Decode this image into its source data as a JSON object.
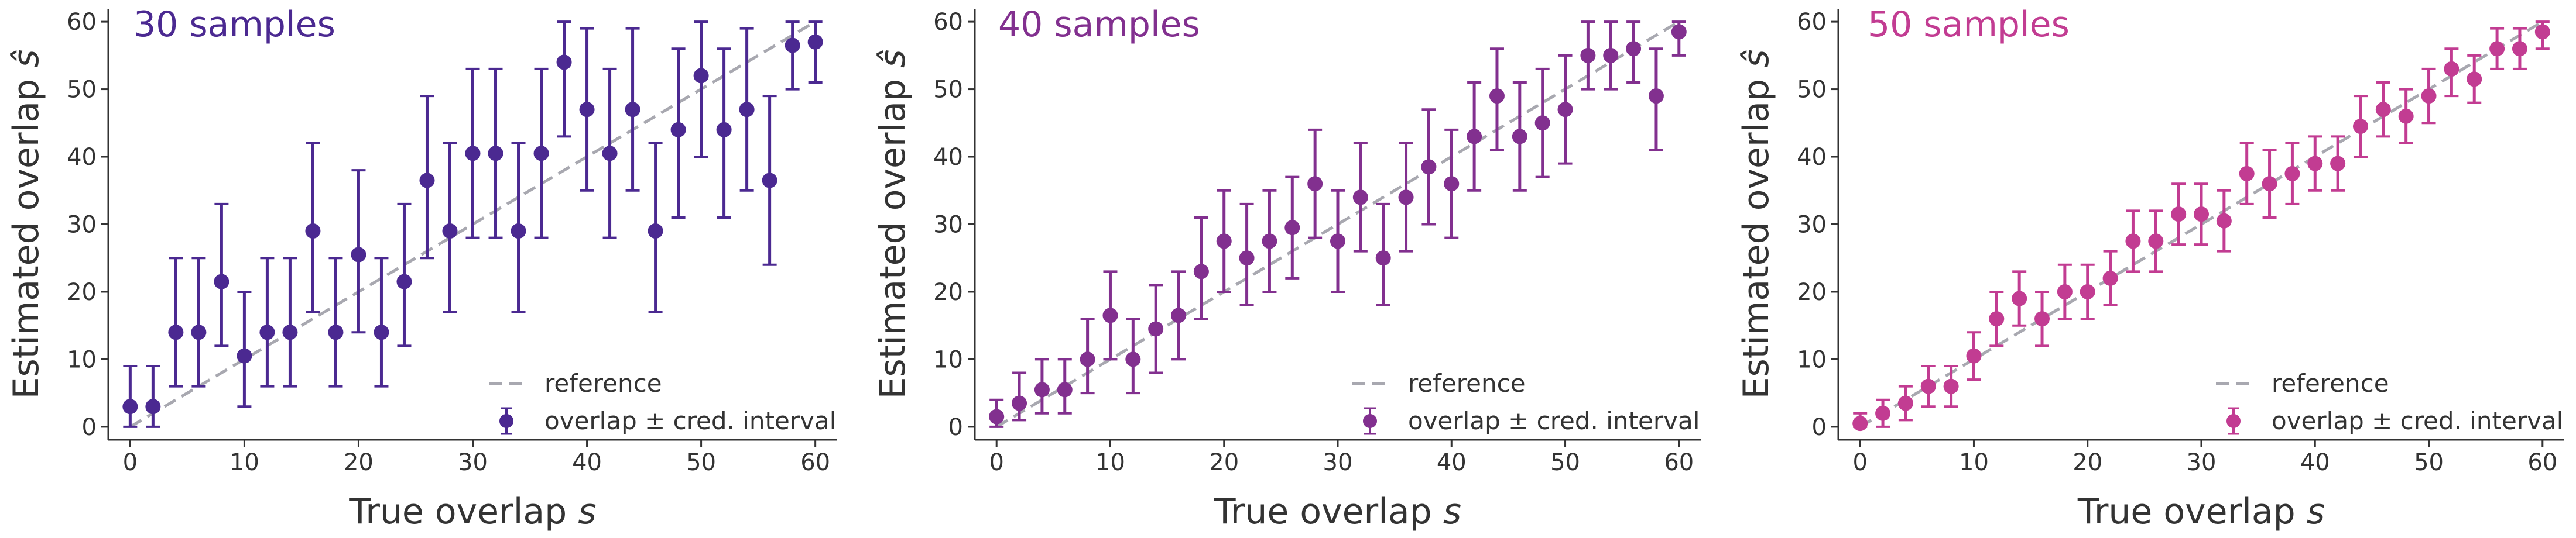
{
  "chart_data": [
    {
      "type": "scatter",
      "title": "30 samples",
      "color": "#4b2991",
      "xlabel": "True overlap",
      "xlabel_var": "s",
      "ylabel": "Estimated overlap",
      "ylabel_var": "ŝ",
      "xlim": [
        0,
        60
      ],
      "ylim": [
        0,
        60
      ],
      "xticks": [
        0,
        10,
        20,
        30,
        40,
        50,
        60
      ],
      "yticks": [
        0,
        10,
        20,
        30,
        40,
        50,
        60
      ],
      "grid": false,
      "legend_position": "bottom-right",
      "legend": {
        "reference": "reference",
        "points": "overlap ± cred. interval"
      },
      "reference_line": {
        "x": [
          0,
          60
        ],
        "y": [
          0,
          60
        ]
      },
      "series": [
        {
          "name": "overlap ± cred. interval",
          "points": [
            {
              "x": 0,
              "y": 3,
              "low": 0,
              "high": 9
            },
            {
              "x": 2,
              "y": 3,
              "low": 0,
              "high": 9
            },
            {
              "x": 4,
              "y": 14,
              "low": 6,
              "high": 25
            },
            {
              "x": 6,
              "y": 14,
              "low": 6,
              "high": 25
            },
            {
              "x": 8,
              "y": 21.5,
              "low": 12,
              "high": 33
            },
            {
              "x": 10,
              "y": 10.5,
              "low": 3,
              "high": 20
            },
            {
              "x": 12,
              "y": 14,
              "low": 6,
              "high": 25
            },
            {
              "x": 14,
              "y": 14,
              "low": 6,
              "high": 25
            },
            {
              "x": 16,
              "y": 29,
              "low": 17,
              "high": 42
            },
            {
              "x": 18,
              "y": 14,
              "low": 6,
              "high": 25
            },
            {
              "x": 20,
              "y": 25.5,
              "low": 14,
              "high": 38
            },
            {
              "x": 22,
              "y": 14,
              "low": 6,
              "high": 25
            },
            {
              "x": 24,
              "y": 21.5,
              "low": 12,
              "high": 33
            },
            {
              "x": 26,
              "y": 36.5,
              "low": 25,
              "high": 49
            },
            {
              "x": 28,
              "y": 29,
              "low": 17,
              "high": 42
            },
            {
              "x": 30,
              "y": 40.5,
              "low": 28,
              "high": 53
            },
            {
              "x": 32,
              "y": 40.5,
              "low": 28,
              "high": 53
            },
            {
              "x": 34,
              "y": 29,
              "low": 17,
              "high": 42
            },
            {
              "x": 36,
              "y": 40.5,
              "low": 28,
              "high": 53
            },
            {
              "x": 38,
              "y": 54,
              "low": 43,
              "high": 60
            },
            {
              "x": 40,
              "y": 47,
              "low": 35,
              "high": 59
            },
            {
              "x": 42,
              "y": 40.5,
              "low": 28,
              "high": 53
            },
            {
              "x": 44,
              "y": 47,
              "low": 35,
              "high": 59
            },
            {
              "x": 46,
              "y": 29,
              "low": 17,
              "high": 42
            },
            {
              "x": 48,
              "y": 44,
              "low": 31,
              "high": 56
            },
            {
              "x": 50,
              "y": 52,
              "low": 40,
              "high": 60
            },
            {
              "x": 52,
              "y": 44,
              "low": 31,
              "high": 56
            },
            {
              "x": 54,
              "y": 47,
              "low": 35,
              "high": 59
            },
            {
              "x": 56,
              "y": 36.5,
              "low": 24,
              "high": 49
            },
            {
              "x": 58,
              "y": 56.5,
              "low": 50,
              "high": 60
            },
            {
              "x": 60,
              "y": 57,
              "low": 51,
              "high": 60
            }
          ]
        }
      ]
    },
    {
      "type": "scatter",
      "title": "40 samples",
      "color": "#82308f",
      "xlabel": "True overlap",
      "xlabel_var": "s",
      "ylabel": "Estimated overlap",
      "ylabel_var": "ŝ",
      "xlim": [
        0,
        60
      ],
      "ylim": [
        0,
        60
      ],
      "xticks": [
        0,
        10,
        20,
        30,
        40,
        50,
        60
      ],
      "yticks": [
        0,
        10,
        20,
        30,
        40,
        50,
        60
      ],
      "grid": false,
      "legend_position": "bottom-right",
      "legend": {
        "reference": "reference",
        "points": "overlap ± cred. interval"
      },
      "reference_line": {
        "x": [
          0,
          60
        ],
        "y": [
          0,
          60
        ]
      },
      "series": [
        {
          "name": "overlap ± cred. interval",
          "points": [
            {
              "x": 0,
              "y": 1.5,
              "low": 0,
              "high": 4
            },
            {
              "x": 2,
              "y": 3.5,
              "low": 1,
              "high": 8
            },
            {
              "x": 4,
              "y": 5.5,
              "low": 2,
              "high": 10
            },
            {
              "x": 6,
              "y": 5.5,
              "low": 2,
              "high": 10
            },
            {
              "x": 8,
              "y": 10,
              "low": 5,
              "high": 16
            },
            {
              "x": 10,
              "y": 16.5,
              "low": 10,
              "high": 23
            },
            {
              "x": 12,
              "y": 10,
              "low": 5,
              "high": 16
            },
            {
              "x": 14,
              "y": 14.5,
              "low": 8,
              "high": 21
            },
            {
              "x": 16,
              "y": 16.5,
              "low": 10,
              "high": 23
            },
            {
              "x": 18,
              "y": 23,
              "low": 16,
              "high": 31
            },
            {
              "x": 20,
              "y": 27.5,
              "low": 20,
              "high": 35
            },
            {
              "x": 22,
              "y": 25,
              "low": 18,
              "high": 33
            },
            {
              "x": 24,
              "y": 27.5,
              "low": 20,
              "high": 35
            },
            {
              "x": 26,
              "y": 29.5,
              "low": 22,
              "high": 37
            },
            {
              "x": 28,
              "y": 36,
              "low": 28,
              "high": 44
            },
            {
              "x": 30,
              "y": 27.5,
              "low": 20,
              "high": 35
            },
            {
              "x": 32,
              "y": 34,
              "low": 26,
              "high": 42
            },
            {
              "x": 34,
              "y": 25,
              "low": 18,
              "high": 33
            },
            {
              "x": 36,
              "y": 34,
              "low": 26,
              "high": 42
            },
            {
              "x": 38,
              "y": 38.5,
              "low": 30,
              "high": 47
            },
            {
              "x": 40,
              "y": 36,
              "low": 28,
              "high": 44
            },
            {
              "x": 42,
              "y": 43,
              "low": 35,
              "high": 51
            },
            {
              "x": 44,
              "y": 49,
              "low": 41,
              "high": 56
            },
            {
              "x": 46,
              "y": 43,
              "low": 35,
              "high": 51
            },
            {
              "x": 48,
              "y": 45,
              "low": 37,
              "high": 53
            },
            {
              "x": 50,
              "y": 47,
              "low": 39,
              "high": 55
            },
            {
              "x": 52,
              "y": 55,
              "low": 50,
              "high": 60
            },
            {
              "x": 54,
              "y": 55,
              "low": 50,
              "high": 60
            },
            {
              "x": 56,
              "y": 56,
              "low": 51,
              "high": 60
            },
            {
              "x": 58,
              "y": 49,
              "low": 41,
              "high": 56
            },
            {
              "x": 60,
              "y": 58.5,
              "low": 55,
              "high": 60
            }
          ]
        }
      ]
    },
    {
      "type": "scatter",
      "title": "50 samples",
      "color": "#c23c92",
      "xlabel": "True overlap",
      "xlabel_var": "s",
      "ylabel": "Estimated overlap",
      "ylabel_var": "ŝ",
      "xlim": [
        0,
        60
      ],
      "ylim": [
        0,
        60
      ],
      "xticks": [
        0,
        10,
        20,
        30,
        40,
        50,
        60
      ],
      "yticks": [
        0,
        10,
        20,
        30,
        40,
        50,
        60
      ],
      "grid": false,
      "legend_position": "bottom-right",
      "legend": {
        "reference": "reference",
        "points": "overlap ± cred. interval"
      },
      "reference_line": {
        "x": [
          0,
          60
        ],
        "y": [
          0,
          60
        ]
      },
      "series": [
        {
          "name": "overlap ± cred. interval",
          "points": [
            {
              "x": 0,
              "y": 0.5,
              "low": 0,
              "high": 2
            },
            {
              "x": 2,
              "y": 2,
              "low": 0,
              "high": 4
            },
            {
              "x": 4,
              "y": 3.5,
              "low": 1,
              "high": 6
            },
            {
              "x": 6,
              "y": 6,
              "low": 3,
              "high": 9
            },
            {
              "x": 8,
              "y": 6,
              "low": 3,
              "high": 9
            },
            {
              "x": 10,
              "y": 10.5,
              "low": 7,
              "high": 14
            },
            {
              "x": 12,
              "y": 16,
              "low": 12,
              "high": 20
            },
            {
              "x": 14,
              "y": 19,
              "low": 15,
              "high": 23
            },
            {
              "x": 16,
              "y": 16,
              "low": 12,
              "high": 20
            },
            {
              "x": 18,
              "y": 20,
              "low": 16,
              "high": 24
            },
            {
              "x": 20,
              "y": 20,
              "low": 16,
              "high": 24
            },
            {
              "x": 22,
              "y": 22,
              "low": 18,
              "high": 26
            },
            {
              "x": 24,
              "y": 27.5,
              "low": 23,
              "high": 32
            },
            {
              "x": 26,
              "y": 27.5,
              "low": 23,
              "high": 32
            },
            {
              "x": 28,
              "y": 31.5,
              "low": 27,
              "high": 36
            },
            {
              "x": 30,
              "y": 31.5,
              "low": 27,
              "high": 36
            },
            {
              "x": 32,
              "y": 30.5,
              "low": 26,
              "high": 35
            },
            {
              "x": 34,
              "y": 37.5,
              "low": 33,
              "high": 42
            },
            {
              "x": 36,
              "y": 36,
              "low": 31,
              "high": 41
            },
            {
              "x": 38,
              "y": 37.5,
              "low": 33,
              "high": 42
            },
            {
              "x": 40,
              "y": 39,
              "low": 35,
              "high": 43
            },
            {
              "x": 42,
              "y": 39,
              "low": 35,
              "high": 43
            },
            {
              "x": 44,
              "y": 44.5,
              "low": 40,
              "high": 49
            },
            {
              "x": 46,
              "y": 47,
              "low": 43,
              "high": 51
            },
            {
              "x": 48,
              "y": 46,
              "low": 42,
              "high": 50
            },
            {
              "x": 50,
              "y": 49,
              "low": 45,
              "high": 53
            },
            {
              "x": 52,
              "y": 53,
              "low": 49,
              "high": 56
            },
            {
              "x": 54,
              "y": 51.5,
              "low": 48,
              "high": 55
            },
            {
              "x": 56,
              "y": 56,
              "low": 53,
              "high": 59
            },
            {
              "x": 58,
              "y": 56,
              "low": 53,
              "high": 59
            },
            {
              "x": 60,
              "y": 58.5,
              "low": 56,
              "high": 60
            }
          ]
        }
      ]
    }
  ]
}
